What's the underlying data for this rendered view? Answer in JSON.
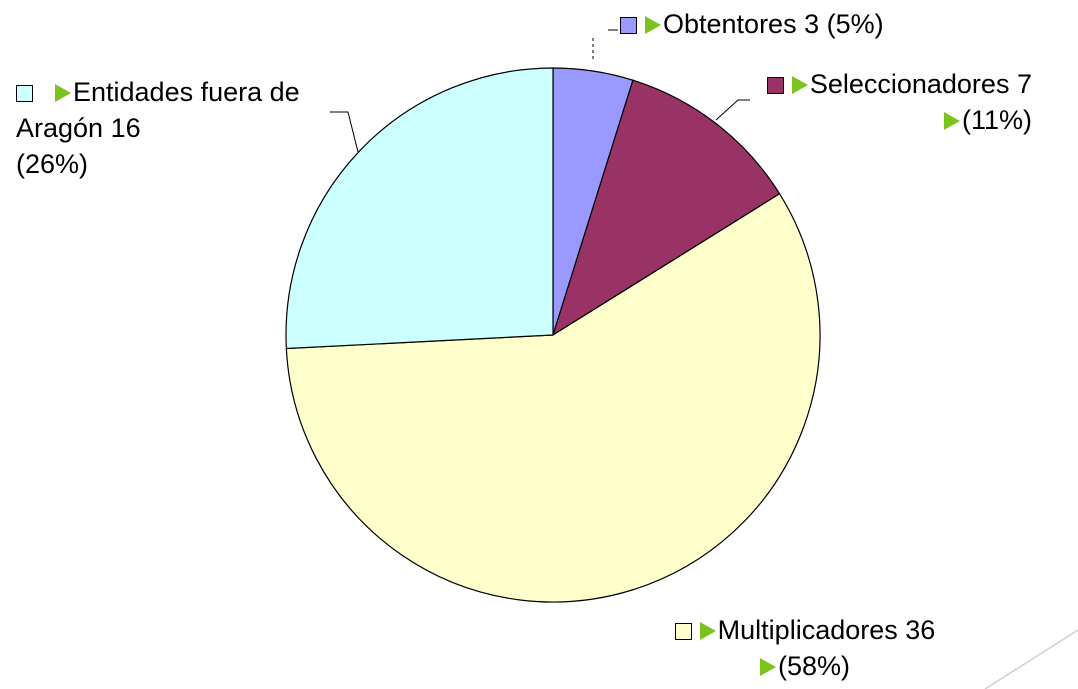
{
  "chart_data": {
    "type": "pie",
    "categories": [
      "Obtentores",
      "Seleccionadores",
      "Multiplicadores",
      "Entidades fuera de Aragón"
    ],
    "values": [
      3,
      7,
      36,
      16
    ],
    "percent_labels": [
      "(5%)",
      "(11%)",
      "(58%)",
      "(26%)"
    ],
    "colors": [
      "#9999ff",
      "#993366",
      "#ffffcc",
      "#ccffff"
    ]
  }
}
